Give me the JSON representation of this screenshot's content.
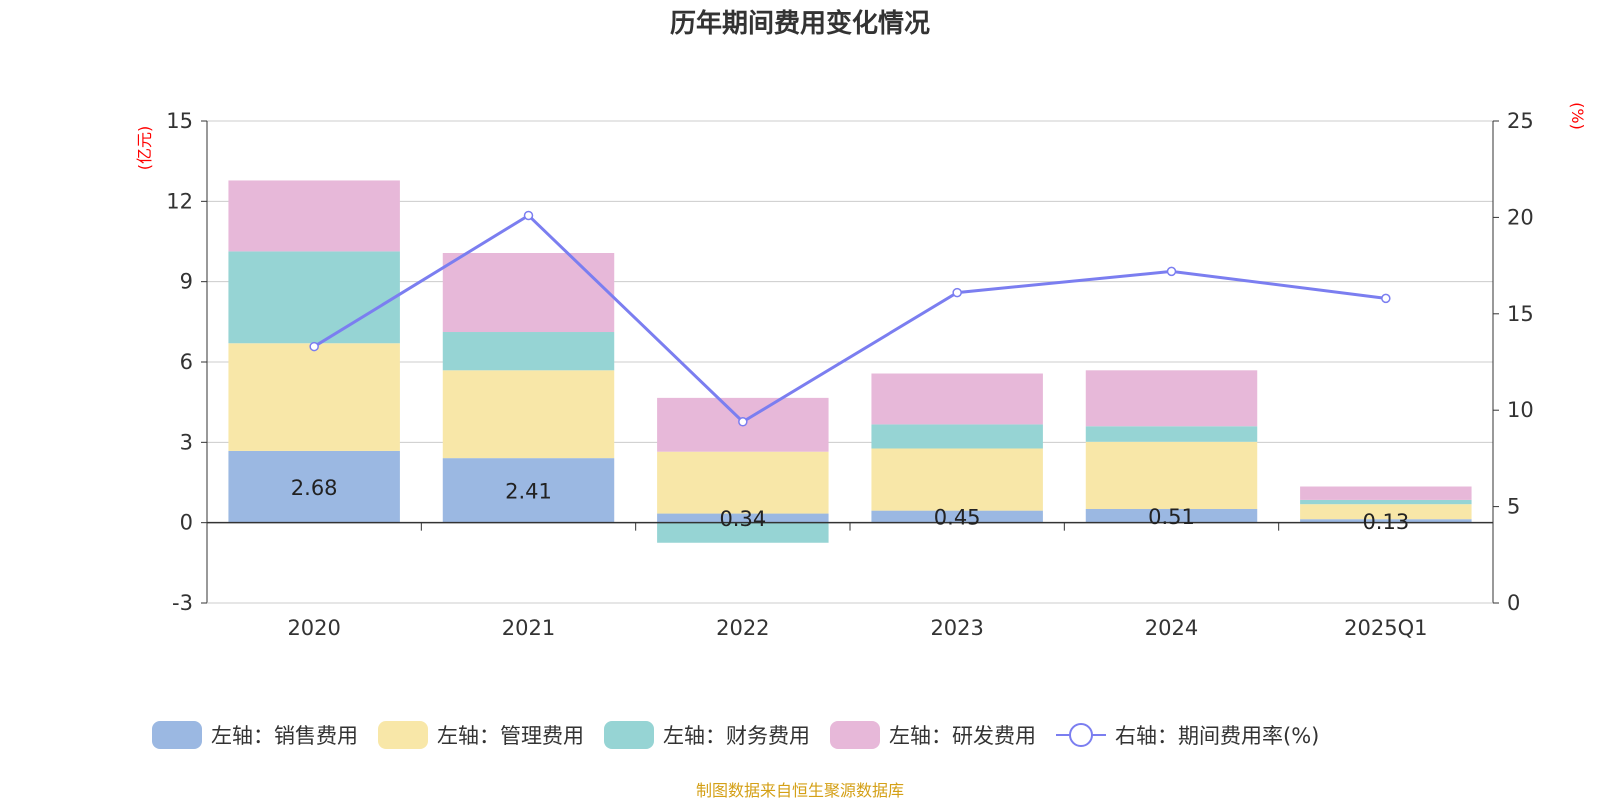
{
  "chart_data": {
    "type": "bar",
    "title": "历年期间费用变化情况",
    "categories": [
      "2020",
      "2021",
      "2022",
      "2023",
      "2024",
      "2025Q1"
    ],
    "left_axis": {
      "unit": "(亿元)",
      "ylim": [
        -3,
        15
      ],
      "ticks": [
        "15",
        "12",
        "9",
        "6",
        "3",
        "0",
        "-3"
      ]
    },
    "right_axis": {
      "unit": "(%)",
      "ylim": [
        0,
        25
      ],
      "ticks": [
        "25",
        "20",
        "15",
        "10",
        "5",
        "0"
      ]
    },
    "series": [
      {
        "name": "左轴：销售费用",
        "kind": "bar",
        "axis": "left",
        "color": "#9bb8e2",
        "values": [
          2.68,
          2.41,
          0.34,
          0.45,
          0.51,
          0.13
        ],
        "labels": [
          "2.68",
          "2.41",
          "0.34",
          "0.45",
          "0.51",
          "0.13"
        ]
      },
      {
        "name": "左轴：管理费用",
        "kind": "bar",
        "axis": "left",
        "color": "#f8e7a8",
        "values": [
          4.02,
          3.28,
          2.31,
          2.32,
          2.51,
          0.56
        ]
      },
      {
        "name": "左轴：财务费用",
        "kind": "bar",
        "axis": "left",
        "color": "#96d4d4",
        "values": [
          3.43,
          1.43,
          -0.75,
          0.9,
          0.58,
          0.16
        ]
      },
      {
        "name": "左轴：研发费用",
        "kind": "bar",
        "axis": "left",
        "color": "#e7b8d9",
        "values": [
          2.65,
          2.95,
          2.01,
          1.9,
          2.09,
          0.5
        ]
      },
      {
        "name": "右轴：期间费用率(%)",
        "kind": "line",
        "axis": "right",
        "color": "#7b7ef0",
        "values": [
          13.3,
          20.1,
          9.4,
          16.1,
          17.2,
          15.8
        ]
      }
    ],
    "grid": true,
    "legend_position": "bottom",
    "footer": "制图数据来自恒生聚源数据库"
  }
}
